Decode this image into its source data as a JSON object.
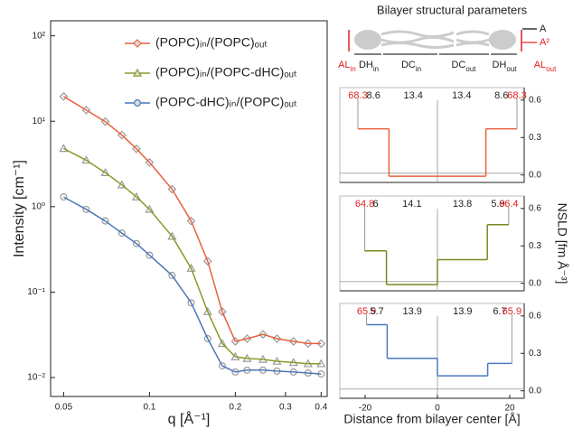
{
  "chart_data": [
    {
      "type": "line",
      "xlabel": "q [Å⁻¹]",
      "ylabel": "Intensity [cm⁻¹]",
      "log_x": true,
      "log_y": true,
      "x": [
        0.05,
        0.06,
        0.07,
        0.08,
        0.09,
        0.1,
        0.12,
        0.14,
        0.16,
        0.18,
        0.2,
        0.22,
        0.25,
        0.28,
        0.32,
        0.36,
        0.4
      ],
      "xlim": [
        0.045,
        0.42
      ],
      "ylim": [
        0.006,
        150
      ],
      "xticks": [
        0.05,
        0.1,
        0.2,
        0.3,
        0.4
      ],
      "yticks": [
        {
          "value": 0.01,
          "label": "10⁻²"
        },
        {
          "value": 0.1,
          "label": "10⁻¹"
        },
        {
          "value": 1,
          "label": "10⁰"
        },
        {
          "value": 10,
          "label": "10¹"
        },
        {
          "value": 100,
          "label": "10²"
        }
      ],
      "legend": "upper right",
      "series": [
        {
          "name": "(POPC)ᵢₙ/(POPC)ₒᵤₜ",
          "color": "#e8603c",
          "marker": "diamond",
          "values": [
            19.5,
            13.5,
            9.9,
            6.9,
            4.75,
            3.3,
            1.6,
            0.68,
            0.23,
            0.059,
            0.0265,
            0.0285,
            0.032,
            0.0285,
            0.0265,
            0.025,
            0.025
          ]
        },
        {
          "name": "(POPC)ᵢₙ/(POPC-dHC)ₒᵤₜ",
          "color": "#8a9a2a",
          "marker": "triangle",
          "values": [
            4.8,
            3.5,
            2.5,
            1.8,
            1.3,
            0.93,
            0.45,
            0.19,
            0.059,
            0.025,
            0.0175,
            0.0167,
            0.0163,
            0.0155,
            0.015,
            0.0145,
            0.0145
          ]
        },
        {
          "name": "(POPC-dHC)ᵢₙ/(POPC)ₒᵤₜ",
          "color": "#4a78b8",
          "marker": "circle",
          "values": [
            1.3,
            0.93,
            0.68,
            0.49,
            0.37,
            0.27,
            0.157,
            0.075,
            0.0285,
            0.0137,
            0.0116,
            0.0122,
            0.0122,
            0.0119,
            0.0116,
            0.0113,
            0.011
          ]
        }
      ]
    },
    {
      "type": "step",
      "color": "#e8603c",
      "edge_label_color": "#e02020",
      "edges": [
        -22,
        -13.4,
        13.4,
        22
      ],
      "values": [
        0.37,
        -0.01,
        0.37
      ],
      "annotations": [
        68.3,
        8.6,
        13.4,
        13.4,
        8.6,
        68.3
      ],
      "xlim": [
        -27,
        24
      ],
      "ylim": [
        -0.06,
        0.7
      ],
      "yticks": [
        {
          "value": 0,
          "label": "0.0"
        },
        {
          "value": 0.3,
          "label": "0.3"
        },
        {
          "value": 0.6,
          "label": "0.6"
        }
      ]
    },
    {
      "type": "step",
      "color": "#7a8a20",
      "edge_label_color": "#e02020",
      "ylabel": "NSLD [fm Å⁻³]",
      "edges": [
        -20.1,
        -14.1,
        0,
        13.8,
        19.7
      ],
      "values": [
        0.26,
        -0.01,
        0.19,
        0.47
      ],
      "annotations": [
        64.8,
        6.0,
        14.1,
        13.8,
        5.9,
        66.4
      ],
      "xlim": [
        -27,
        24
      ],
      "ylim": [
        -0.06,
        0.7
      ],
      "yticks": [
        {
          "value": 0,
          "label": "0.0"
        },
        {
          "value": 0.3,
          "label": "0.3"
        },
        {
          "value": 0.6,
          "label": "0.6"
        }
      ]
    },
    {
      "type": "step",
      "color": "#4a78c0",
      "edge_label_color": "#e02020",
      "xlabel": "Distance from bilayer center [Å]",
      "edges": [
        -19.6,
        -13.9,
        0,
        13.9,
        20.6
      ],
      "values": [
        0.53,
        0.26,
        0.12,
        0.22
      ],
      "annotations": [
        65.9,
        5.7,
        13.9,
        13.9,
        6.7,
        65.9
      ],
      "xlim": [
        -27,
        24
      ],
      "ylim": [
        -0.06,
        0.7
      ],
      "xticks": [
        -20,
        0,
        20
      ],
      "yticks": [
        {
          "value": 0,
          "label": "0.0"
        },
        {
          "value": 0.3,
          "label": "0.3"
        },
        {
          "value": 0.6,
          "label": "0.6"
        }
      ]
    }
  ],
  "schematic": {
    "title": "Bilayer structural parameters",
    "area": "A",
    "area_squared": "A²",
    "labels": [
      {
        "text": "AL",
        "sub": "in"
      },
      {
        "text": "DH",
        "sub": "in"
      },
      {
        "text": "DC",
        "sub": "in"
      },
      {
        "text": "DC",
        "sub": "out"
      },
      {
        "text": "DH",
        "sub": "out"
      },
      {
        "text": "AL",
        "sub": "out"
      }
    ]
  }
}
